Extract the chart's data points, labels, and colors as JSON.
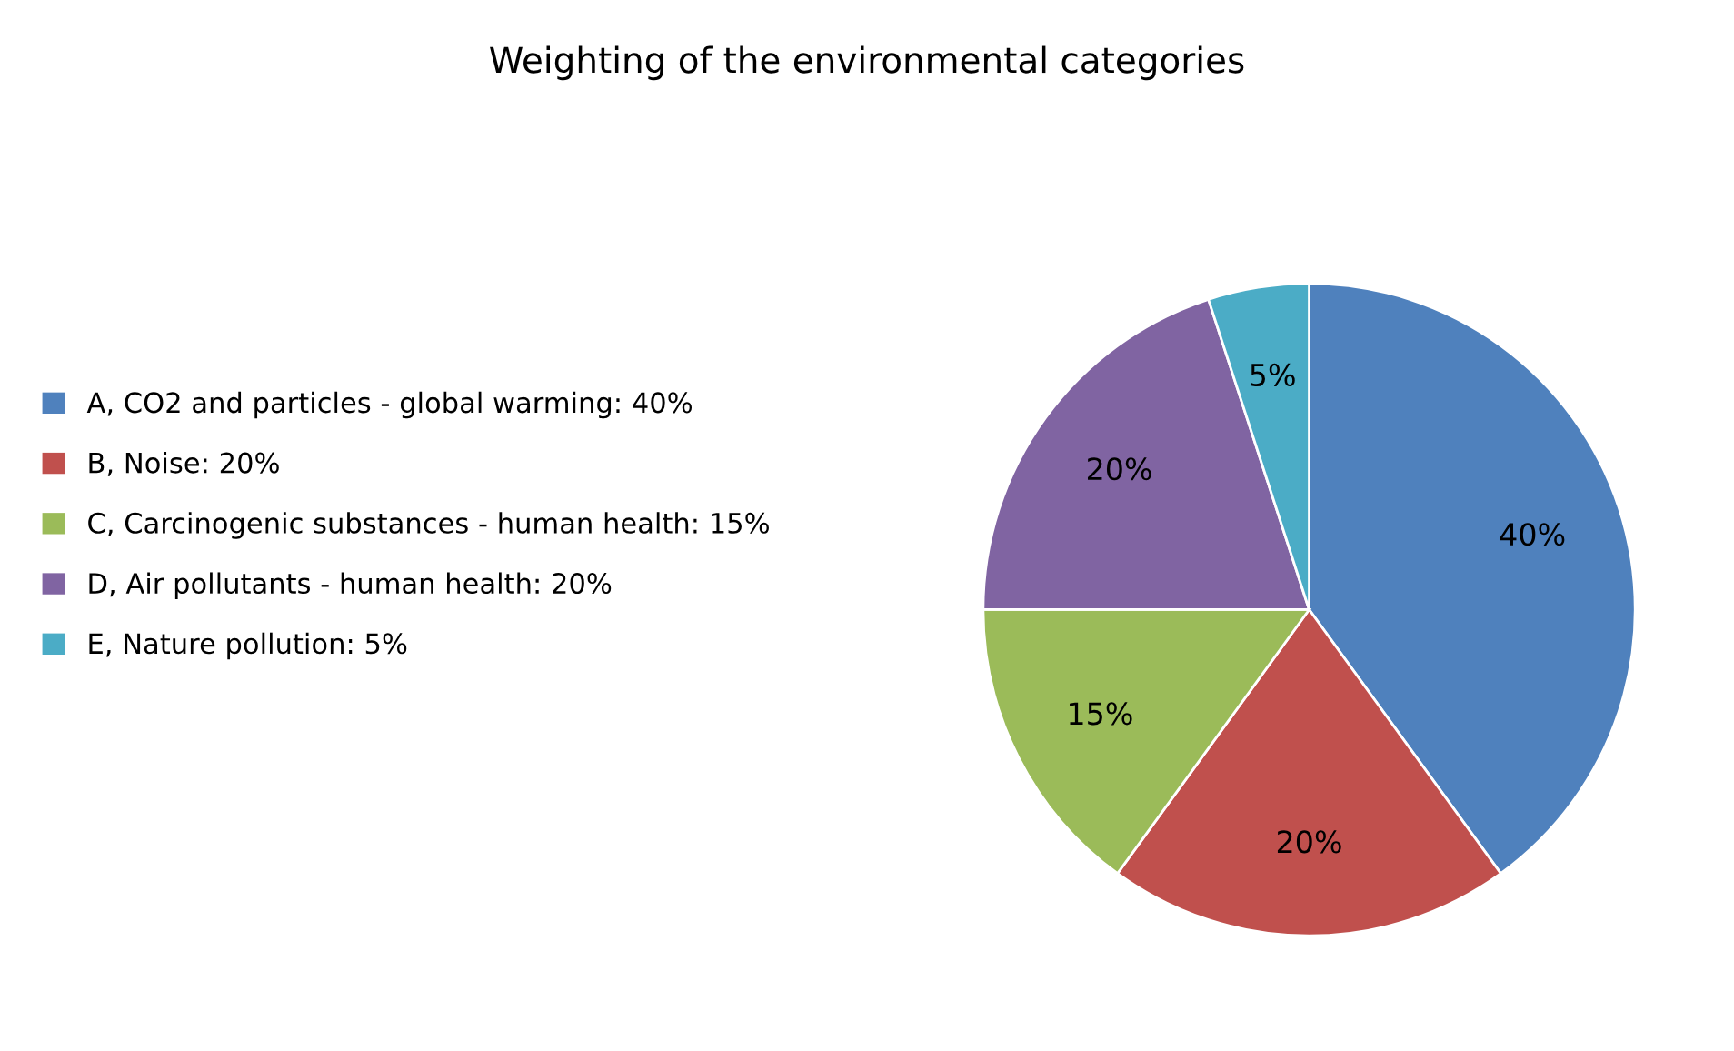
{
  "chart_data": {
    "type": "pie",
    "title": "Weighting of the environmental categories",
    "categories": [
      "A, CO2 and particles - global warming: 40%",
      "B, Noise: 20%",
      "C, Carcinogenic substances - human health: 15%",
      "D, Air pollutants - human health: 20%",
      "E, Nature pollution: 5%"
    ],
    "values": [
      40,
      20,
      15,
      20,
      5
    ],
    "colors": [
      "#4f81bd",
      "#c0504d",
      "#9bbb59",
      "#8064a2",
      "#4bacc6"
    ],
    "value_labels": [
      "40%",
      "20%",
      "15%",
      "20%",
      "5%"
    ],
    "legend": "left"
  }
}
